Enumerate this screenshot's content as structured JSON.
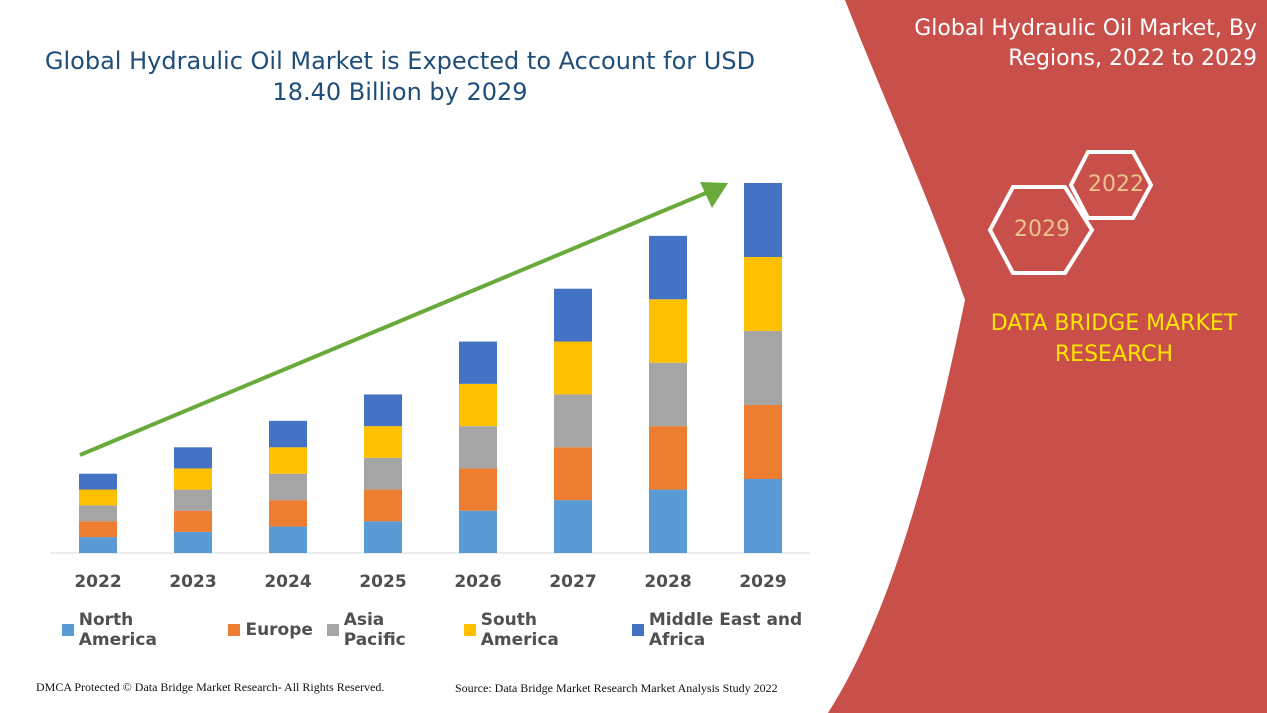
{
  "title": "Global Hydraulic Oil Market is Expected to Account for USD 18.40 Billion by 2029",
  "side_title": "Global Hydraulic Oil Market, By Regions, 2022 to 2029",
  "hex_labels": {
    "top": "2022",
    "bottom": "2029"
  },
  "brand": "DATA BRIDGE MARKET RESEARCH",
  "footer": {
    "left": "DMCA Protected © Data Bridge Market Research- All Rights Reserved.",
    "right": "Source: Data Bridge Market Research Market Analysis Study 2022"
  },
  "colors": {
    "panel": "#c9504a",
    "north_america": "#5b9bd5",
    "europe": "#ed7d31",
    "asia_pacific": "#a5a5a5",
    "south_america": "#ffc000",
    "middle_east_africa": "#4472c4",
    "trend_arrow": "#6aaa3a"
  },
  "chart_data": {
    "type": "bar",
    "stacked": true,
    "title": "Global Hydraulic Oil Market is Expected to Account for USD 18.40 Billion by 2029",
    "categories": [
      "2022",
      "2023",
      "2024",
      "2025",
      "2026",
      "2027",
      "2028",
      "2029"
    ],
    "series": [
      {
        "name": "North America",
        "color": "#5b9bd5",
        "values": [
          3.0,
          4.0,
          5.0,
          6.0,
          8.0,
          10.0,
          12.0,
          14.0
        ]
      },
      {
        "name": "Europe",
        "color": "#ed7d31",
        "values": [
          3.0,
          4.0,
          5.0,
          6.0,
          8.0,
          10.0,
          12.0,
          14.0
        ]
      },
      {
        "name": "Asia Pacific",
        "color": "#a5a5a5",
        "values": [
          3.0,
          4.0,
          5.0,
          6.0,
          8.0,
          10.0,
          12.0,
          14.0
        ]
      },
      {
        "name": "South America",
        "color": "#ffc000",
        "values": [
          3.0,
          4.0,
          5.0,
          6.0,
          8.0,
          10.0,
          12.0,
          14.0
        ]
      },
      {
        "name": "Middle East and Africa",
        "color": "#4472c4",
        "values": [
          3.0,
          4.0,
          5.0,
          6.0,
          8.0,
          10.0,
          12.0,
          14.0
        ]
      }
    ],
    "ylim": [
      0,
      70
    ],
    "grid": false,
    "legend_position": "bottom",
    "trend_arrow": true
  }
}
